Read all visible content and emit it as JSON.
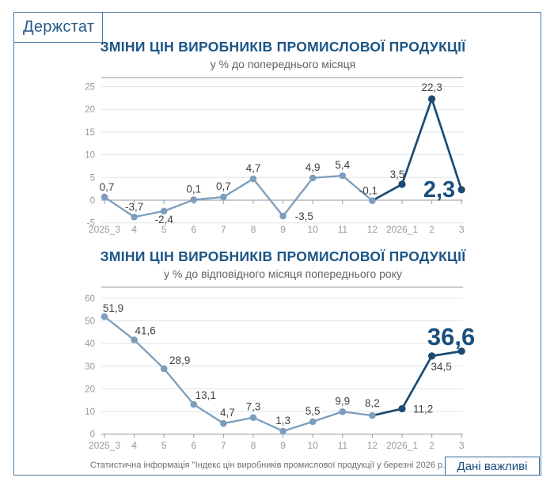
{
  "page": {
    "logo": "Держстат",
    "footer_source": "Статистична інформація \"Індекс цін виробників промислової продукції у березні 2026 р.\"",
    "badge": "Дані важливі"
  },
  "colors": {
    "title_blue": "#1b5586",
    "big_number_blue": "#1a4f7c",
    "series_light": "#7d9dbd",
    "series_dark": "#1b4a72",
    "border_blue": "#4a79a5",
    "axis_line_gray": "#a6acb2",
    "grid_gray": "#e0e3e6",
    "axis_label_gray": "#96999d",
    "data_label_gray": "#3f4245"
  },
  "chart_data": [
    {
      "type": "line",
      "title": "ЗМІНИ ЦІН ВИРОБНИКІВ ПРОМИСЛОВОЇ ПРОДУКЦІЇ",
      "subtitle": "у % до попереднього місяця",
      "categories": [
        "2025_3",
        "4",
        "5",
        "6",
        "7",
        "8",
        "9",
        "10",
        "11",
        "12",
        "2026_1",
        "2",
        "3"
      ],
      "values": [
        0.7,
        -3.7,
        -2.4,
        0.1,
        0.7,
        4.7,
        -3.5,
        4.9,
        5.4,
        -0.1,
        3.5,
        22.3,
        2.3
      ],
      "yticks": [
        25,
        20,
        15,
        10,
        5,
        0,
        -5
      ],
      "ylim": [
        -5,
        27
      ],
      "grid": true,
      "legend": "none",
      "highlight_from_index": 9,
      "big_label_index": 12,
      "big_label_text": "2,3"
    },
    {
      "type": "line",
      "title": "ЗМІНИ ЦІН ВИРОБНИКІВ ПРОМИСЛОВОЇ ПРОДУКЦІЇ",
      "subtitle": "у % до відповідного місяця попереднього року",
      "categories": [
        "2025_3",
        "4",
        "5",
        "6",
        "7",
        "8",
        "9",
        "10",
        "11",
        "12",
        "2026_1",
        "2",
        "3"
      ],
      "values": [
        51.9,
        41.6,
        28.9,
        13.1,
        4.7,
        7.3,
        1.3,
        5.5,
        9.9,
        8.2,
        11.2,
        34.5,
        36.6
      ],
      "yticks": [
        60,
        50,
        40,
        30,
        20,
        10,
        0
      ],
      "ylim": [
        0,
        65
      ],
      "grid": true,
      "legend": "none",
      "highlight_from_index": 9,
      "big_label_index": 12,
      "big_label_text": "36,6"
    }
  ]
}
